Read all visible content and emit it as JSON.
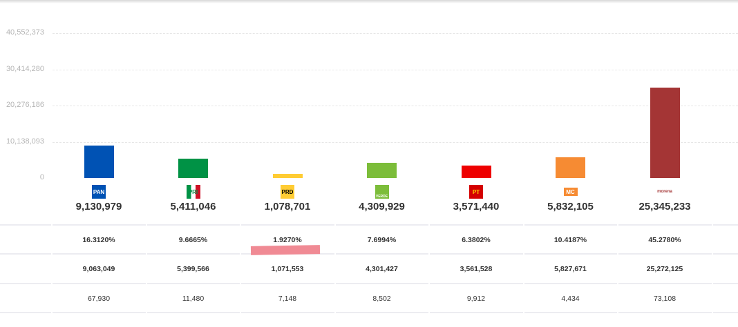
{
  "chart_data": {
    "type": "bar",
    "title": "",
    "xlabel": "",
    "ylabel": "",
    "ylim": [
      0,
      50690466
    ],
    "yticks": [
      "0",
      "10,138,093",
      "20,276,186",
      "30,414,280",
      "40,552,373"
    ],
    "grid": true,
    "categories": [
      "PAN",
      "PRI",
      "PRD",
      "VERDE",
      "PT",
      "MC",
      "morena"
    ],
    "values": [
      9130979,
      5411046,
      1078701,
      4309929,
      3571440,
      5832105,
      25345233
    ],
    "value_labels": [
      "9,130,979",
      "5,411,046",
      "1,078,701",
      "4,309,929",
      "3,571,440",
      "5,832,105",
      "25,345,233"
    ],
    "colors": [
      "#0052b4",
      "#009245",
      "#ffcc33",
      "#7cbd3a",
      "#ee0000",
      "#f68b33",
      "#a43535"
    ]
  },
  "table": {
    "percent_row": [
      "16.3120%",
      "9.6665%",
      "1.9270%",
      "7.6994%",
      "6.3802%",
      "10.4187%",
      "45.2780%"
    ],
    "votes_row": [
      "9,063,049",
      "5,399,566",
      "1,071,553",
      "4,301,427",
      "3,561,528",
      "5,827,671",
      "25,272,125"
    ],
    "third_row": [
      "67,930",
      "11,480",
      "7,148",
      "8,502",
      "9,912",
      "4,434",
      "73,108"
    ]
  },
  "logos": [
    "PAN",
    "PRI",
    "PRD",
    "VERDE",
    "PT",
    "MC",
    "morena"
  ]
}
